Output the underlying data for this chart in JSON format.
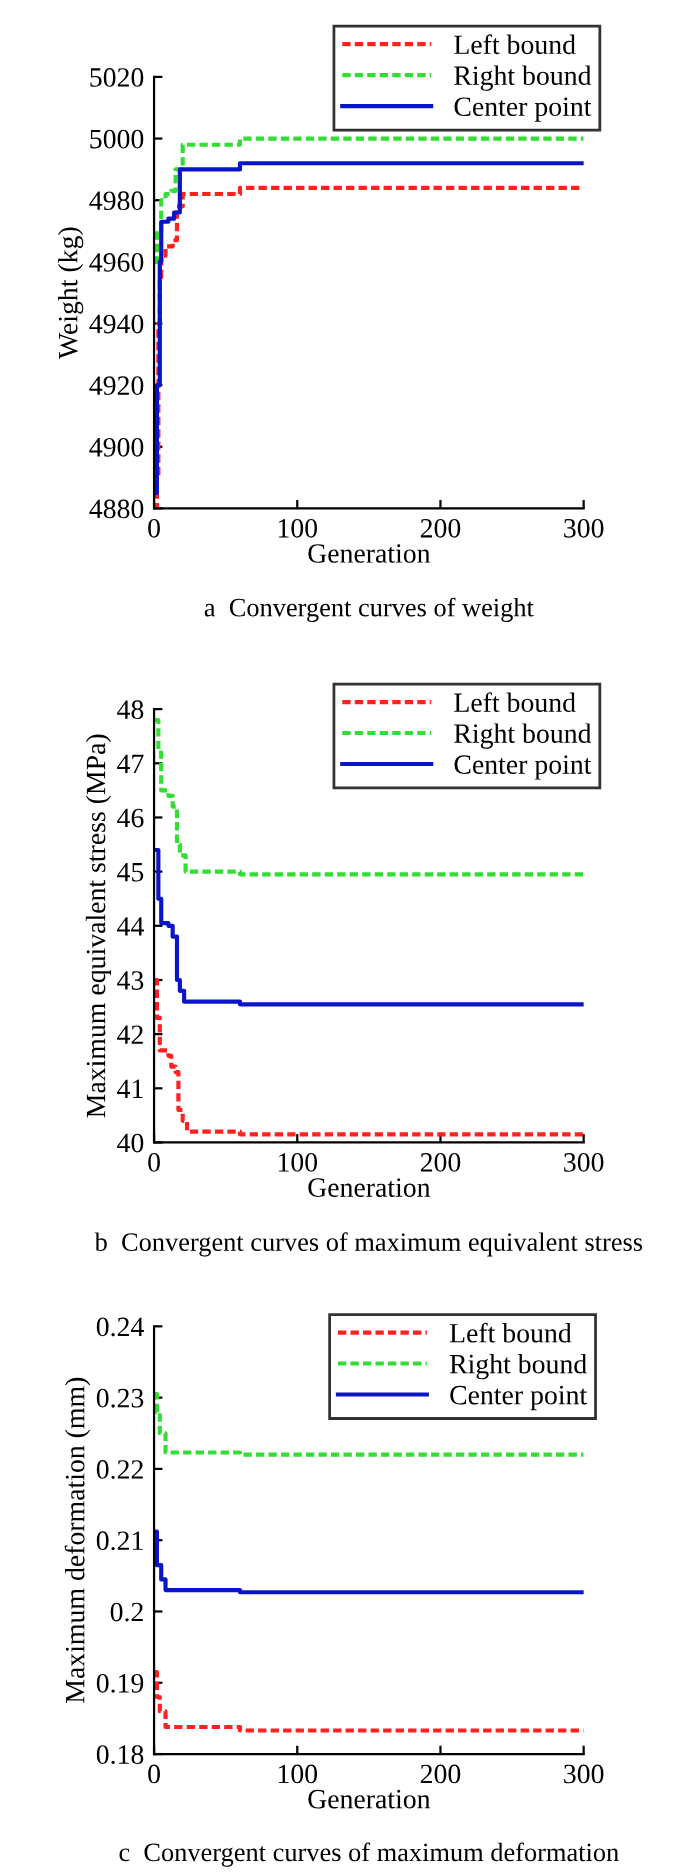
{
  "chart_data": [
    {
      "type": "step",
      "title": "a  Convergent curves of weight",
      "xlabel": "Generation",
      "ylabel": "Weight (kg)",
      "xlim": [
        0,
        300
      ],
      "xticks": [
        0,
        100,
        200,
        300
      ],
      "ylim": [
        4880,
        5020
      ],
      "yticks": [
        4880,
        4900,
        4920,
        4940,
        4960,
        4980,
        5000,
        5020
      ],
      "grid": false,
      "legend": "top right",
      "series": [
        {
          "name": "Left bound",
          "color": "#ff2020",
          "line_style": "dashed",
          "x": [
            0,
            2,
            3,
            4,
            5,
            8,
            13,
            16,
            20,
            58,
            60,
            300
          ],
          "values": [
            4880,
            4890,
            4940,
            4955,
            4962,
            4965,
            4967,
            4978,
            4982,
            4982,
            4984,
            4984
          ]
        },
        {
          "name": "Right bound",
          "color": "#33dd33",
          "line_style": "dashed",
          "x": [
            0,
            2,
            5,
            8,
            12,
            15,
            20,
            58,
            60,
            300
          ],
          "values": [
            4960,
            4970,
            4980,
            4982,
            4983,
            4990,
            4998,
            4998,
            5000,
            5000
          ]
        },
        {
          "name": "Center point",
          "color": "#0a14c8",
          "line_style": "solid",
          "x": [
            0,
            2,
            4,
            5,
            10,
            14,
            18,
            58,
            60,
            300
          ],
          "values": [
            4885,
            4920,
            4960,
            4973,
            4974,
            4976,
            4990,
            4990,
            4992,
            4992
          ]
        }
      ]
    },
    {
      "type": "step",
      "title": "b  Convergent curves of maximum equivalent stress",
      "xlabel": "Generation",
      "ylabel": "Maximum equivalent stress (MPa)",
      "xlim": [
        0,
        300
      ],
      "xticks": [
        0,
        100,
        200,
        300
      ],
      "ylim": [
        40,
        48
      ],
      "yticks": [
        40,
        41,
        42,
        43,
        44,
        45,
        46,
        47,
        48
      ],
      "grid": false,
      "legend": "top right",
      "series": [
        {
          "name": "Left bound",
          "color": "#ff2020",
          "line_style": "dashed",
          "x": [
            0,
            2,
            4,
            10,
            12,
            15,
            17,
            20,
            23,
            58,
            60,
            300
          ],
          "values": [
            43.0,
            42.3,
            41.7,
            41.6,
            41.4,
            41.3,
            40.6,
            40.4,
            40.2,
            40.2,
            40.15,
            40.15
          ]
        },
        {
          "name": "Right bound",
          "color": "#33dd33",
          "line_style": "dashed",
          "x": [
            0,
            3,
            5,
            10,
            13,
            16,
            18,
            22,
            58,
            60,
            300
          ],
          "values": [
            47.8,
            47.2,
            46.5,
            46.4,
            46.2,
            45.5,
            45.3,
            45.0,
            45.0,
            44.95,
            44.95
          ]
        },
        {
          "name": "Center point",
          "color": "#0a14c8",
          "line_style": "solid",
          "x": [
            0,
            3,
            5,
            10,
            13,
            16,
            18,
            21,
            58,
            60,
            300
          ],
          "values": [
            45.4,
            44.5,
            44.05,
            44.0,
            43.8,
            43.0,
            42.8,
            42.6,
            42.6,
            42.55,
            42.55
          ]
        }
      ]
    },
    {
      "type": "step",
      "title": "c  Convergent curves of maximum deformation",
      "xlabel": "Generation",
      "ylabel": "Maximum deformation (mm)",
      "xlim": [
        0,
        300
      ],
      "xticks": [
        0,
        100,
        200,
        300
      ],
      "ylim": [
        0.18,
        0.24
      ],
      "yticks": [
        0.18,
        0.19,
        0.2,
        0.21,
        0.22,
        0.23,
        0.24
      ],
      "grid": false,
      "legend": "top right",
      "series": [
        {
          "name": "Left bound",
          "color": "#ff2020",
          "line_style": "dashed",
          "x": [
            0,
            2,
            4,
            8,
            58,
            60,
            300
          ],
          "values": [
            0.1915,
            0.188,
            0.186,
            0.1838,
            0.1838,
            0.1833,
            0.1833
          ]
        },
        {
          "name": "Right bound",
          "color": "#33dd33",
          "line_style": "dashed",
          "x": [
            0,
            2,
            4,
            8,
            58,
            60,
            300
          ],
          "values": [
            0.2305,
            0.228,
            0.225,
            0.2223,
            0.2223,
            0.222,
            0.222
          ]
        },
        {
          "name": "Center point",
          "color": "#0a14c8",
          "line_style": "solid",
          "x": [
            0,
            2,
            5,
            8,
            58,
            60,
            300
          ],
          "values": [
            0.2112,
            0.2065,
            0.2045,
            0.203,
            0.203,
            0.2027,
            0.2027
          ]
        }
      ]
    }
  ]
}
